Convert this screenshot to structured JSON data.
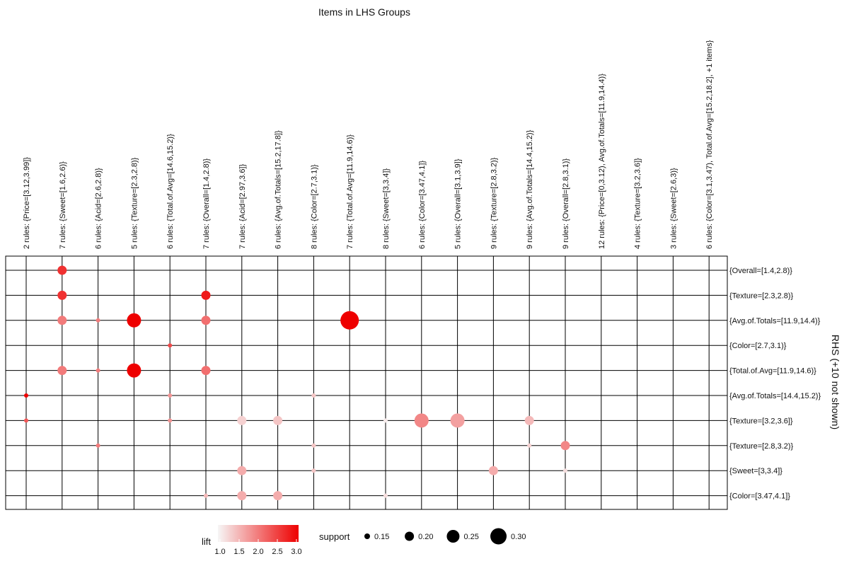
{
  "chart_data": {
    "type": "scatter",
    "title": "Items in LHS Groups",
    "x_labels": [
      "2 rules: {Price=[3.12,3.99]}",
      "7 rules: {Sweet=[1.6,2.6)}",
      "6 rules: {Acid=[2.6,2.8)}",
      "5 rules: {Texture=[2.3,2.8)}",
      "6 rules: {Total.of.Avg=[14.6,15.2)}",
      "7 rules: {Overall=[1.4,2.8)}",
      "7 rules: {Acid=[2.97,3.6]}",
      "6 rules: {Avg.of.Totals=[15.2,17.8]}",
      "8 rules: {Color=[2.7,3.1)}",
      "7 rules: {Total.of.Avg=[11.9,14.6)}",
      "8 rules: {Sweet=[3,3.4]}",
      "6 rules: {Color=[3.47,4.1]}",
      "5 rules: {Overall=[3.1,3.9]}",
      "9 rules: {Texture=[2.8,3.2)}",
      "9 rules: {Avg.of.Totals=[14.4,15.2)}",
      "9 rules: {Overall=[2.8,3.1)}",
      "12 rules: {Price=[0,3.12), Avg.of.Totals=[11.9,14.4)}",
      "4 rules: {Texture=[3.2,3.6]}",
      "3 rules: {Sweet=[2.6,3)}",
      "6 rules: {Color=[3.1,3.47), Total.of.Avg=[15.2,18.2], +1 items}"
    ],
    "y_labels": [
      "{Overall=[1.4,2.8)}",
      "{Texture=[2.3,2.8)}",
      "{Avg.of.Totals=[11.9,14.4)}",
      "{Color=[2.7,3.1)}",
      "{Total.of.Avg=[11.9,14.6)}",
      "{Avg.of.Totals=[14.4,15.2)}",
      "{Texture=[3.2,3.6]}",
      "{Texture=[2.8,3.2)}",
      "{Sweet=[3,3.4]}",
      "{Color=[3.47,4.1]}"
    ],
    "y_axis_label": "RHS (+10 not shown)",
    "points": [
      {
        "x": 0,
        "y": 5,
        "support": 0.13,
        "lift": 3.0
      },
      {
        "x": 0,
        "y": 6,
        "support": 0.13,
        "lift": 2.3
      },
      {
        "x": 1,
        "y": 0,
        "support": 0.2,
        "lift": 2.6
      },
      {
        "x": 1,
        "y": 1,
        "support": 0.2,
        "lift": 2.6
      },
      {
        "x": 1,
        "y": 2,
        "support": 0.2,
        "lift": 2.0
      },
      {
        "x": 1,
        "y": 4,
        "support": 0.2,
        "lift": 2.0
      },
      {
        "x": 2,
        "y": 2,
        "support": 0.13,
        "lift": 2.0
      },
      {
        "x": 2,
        "y": 4,
        "support": 0.13,
        "lift": 2.0
      },
      {
        "x": 2,
        "y": 7,
        "support": 0.13,
        "lift": 2.0
      },
      {
        "x": 3,
        "y": 2,
        "support": 0.27,
        "lift": 3.0
      },
      {
        "x": 3,
        "y": 4,
        "support": 0.27,
        "lift": 3.0
      },
      {
        "x": 4,
        "y": 3,
        "support": 0.13,
        "lift": 2.4
      },
      {
        "x": 4,
        "y": 5,
        "support": 0.13,
        "lift": 1.8
      },
      {
        "x": 4,
        "y": 6,
        "support": 0.13,
        "lift": 1.8
      },
      {
        "x": 5,
        "y": 1,
        "support": 0.2,
        "lift": 2.8
      },
      {
        "x": 5,
        "y": 2,
        "support": 0.2,
        "lift": 2.1
      },
      {
        "x": 5,
        "y": 4,
        "support": 0.2,
        "lift": 2.1
      },
      {
        "x": 5,
        "y": 9,
        "support": 0.13,
        "lift": 1.5
      },
      {
        "x": 6,
        "y": 6,
        "support": 0.2,
        "lift": 1.3
      },
      {
        "x": 6,
        "y": 8,
        "support": 0.2,
        "lift": 1.6
      },
      {
        "x": 6,
        "y": 9,
        "support": 0.2,
        "lift": 1.6
      },
      {
        "x": 7,
        "y": 6,
        "support": 0.2,
        "lift": 1.4
      },
      {
        "x": 7,
        "y": 9,
        "support": 0.2,
        "lift": 1.6
      },
      {
        "x": 8,
        "y": 5,
        "support": 0.13,
        "lift": 1.4
      },
      {
        "x": 8,
        "y": 7,
        "support": 0.13,
        "lift": 1.4
      },
      {
        "x": 8,
        "y": 8,
        "support": 0.13,
        "lift": 1.4
      },
      {
        "x": 9,
        "y": 2,
        "support": 0.33,
        "lift": 3.0
      },
      {
        "x": 10,
        "y": 6,
        "support": 0.13,
        "lift": 1.1
      },
      {
        "x": 10,
        "y": 9,
        "support": 0.13,
        "lift": 1.2
      },
      {
        "x": 11,
        "y": 6,
        "support": 0.27,
        "lift": 1.9
      },
      {
        "x": 12,
        "y": 6,
        "support": 0.27,
        "lift": 1.7
      },
      {
        "x": 13,
        "y": 8,
        "support": 0.2,
        "lift": 1.6
      },
      {
        "x": 14,
        "y": 6,
        "support": 0.2,
        "lift": 1.5
      },
      {
        "x": 14,
        "y": 7,
        "support": 0.13,
        "lift": 1.3
      },
      {
        "x": 15,
        "y": 7,
        "support": 0.2,
        "lift": 1.9
      },
      {
        "x": 15,
        "y": 8,
        "support": 0.13,
        "lift": 1.2
      }
    ],
    "lift_legend": {
      "title": "lift",
      "ticks": [
        1.0,
        1.5,
        2.0,
        2.5,
        3.0
      ],
      "tick_labels": [
        "1.0",
        "1.5",
        "2.0",
        "2.5",
        "3.0"
      ],
      "color_low": "#f6f6f6",
      "color_high": "#ee0000"
    },
    "support_legend": {
      "title": "support",
      "values": [
        0.15,
        0.2,
        0.25,
        0.3
      ],
      "labels": [
        "0.15",
        "0.20",
        "0.25",
        "0.30"
      ]
    },
    "grid": true,
    "legend_position": "bottom"
  }
}
